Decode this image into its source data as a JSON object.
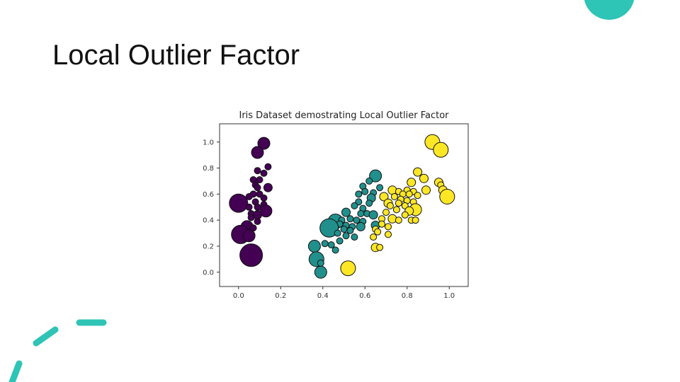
{
  "slide": {
    "title": "Local Outlier Factor"
  },
  "colors": {
    "accent": "#2ec4b6",
    "class0": "#440154",
    "class1": "#21908c",
    "class2": "#fde725"
  },
  "chart_data": {
    "type": "scatter",
    "title": "Iris Dataset demostrating Local Outlier Factor",
    "xlabel": "",
    "ylabel": "",
    "xlim": [
      -0.09,
      1.09
    ],
    "ylim": [
      -0.11,
      1.14
    ],
    "xticks": [
      0.0,
      0.2,
      0.4,
      0.6,
      0.8,
      1.0
    ],
    "yticks": [
      0.0,
      0.2,
      0.4,
      0.6,
      0.8,
      1.0
    ],
    "xtick_labels": [
      "0.0",
      "0.2",
      "0.4",
      "0.6",
      "0.8",
      "1.0"
    ],
    "ytick_labels": [
      "0.0",
      "0.2",
      "0.4",
      "0.6",
      "0.8",
      "1.0"
    ],
    "grid": false,
    "series": [
      {
        "color": "#440154",
        "points": [
          [
            0.12,
            0.99,
            3
          ],
          [
            0.09,
            0.92,
            3
          ],
          [
            0.14,
            0.81,
            1
          ],
          [
            0.09,
            0.78,
            1
          ],
          [
            0.12,
            0.76,
            1
          ],
          [
            0.1,
            0.71,
            1
          ],
          [
            0.07,
            0.71,
            1
          ],
          [
            0.08,
            0.67,
            1
          ],
          [
            0.14,
            0.65,
            2
          ],
          [
            0.09,
            0.65,
            1
          ],
          [
            0.07,
            0.6,
            1
          ],
          [
            0.1,
            0.6,
            1
          ],
          [
            0.05,
            0.58,
            1
          ],
          [
            0.12,
            0.57,
            1
          ],
          [
            0.0,
            0.53,
            5
          ],
          [
            0.08,
            0.54,
            1
          ],
          [
            0.12,
            0.52,
            1
          ],
          [
            0.05,
            0.5,
            1
          ],
          [
            0.09,
            0.5,
            1
          ],
          [
            0.13,
            0.47,
            3
          ],
          [
            0.06,
            0.45,
            1
          ],
          [
            0.09,
            0.44,
            2
          ],
          [
            0.06,
            0.42,
            1
          ],
          [
            0.09,
            0.39,
            1
          ],
          [
            0.04,
            0.35,
            3
          ],
          [
            0.07,
            0.34,
            1
          ],
          [
            0.01,
            0.29,
            5
          ],
          [
            0.05,
            0.28,
            3
          ],
          [
            0.06,
            0.13,
            6
          ]
        ]
      },
      {
        "color": "#21908c",
        "points": [
          [
            0.65,
            0.74,
            3
          ],
          [
            0.62,
            0.7,
            1
          ],
          [
            0.59,
            0.66,
            1
          ],
          [
            0.67,
            0.65,
            1
          ],
          [
            0.6,
            0.62,
            1
          ],
          [
            0.64,
            0.61,
            1
          ],
          [
            0.57,
            0.6,
            1
          ],
          [
            0.63,
            0.57,
            2
          ],
          [
            0.57,
            0.54,
            1
          ],
          [
            0.62,
            0.53,
            1
          ],
          [
            0.55,
            0.51,
            1
          ],
          [
            0.59,
            0.49,
            1
          ],
          [
            0.51,
            0.46,
            2
          ],
          [
            0.58,
            0.45,
            1
          ],
          [
            0.61,
            0.45,
            1
          ],
          [
            0.64,
            0.44,
            2
          ],
          [
            0.46,
            0.39,
            4
          ],
          [
            0.53,
            0.41,
            1
          ],
          [
            0.49,
            0.4,
            1
          ],
          [
            0.56,
            0.4,
            1
          ],
          [
            0.59,
            0.39,
            1
          ],
          [
            0.48,
            0.37,
            1
          ],
          [
            0.51,
            0.36,
            1
          ],
          [
            0.54,
            0.35,
            1
          ],
          [
            0.58,
            0.35,
            2
          ],
          [
            0.65,
            0.36,
            2
          ],
          [
            0.43,
            0.34,
            5
          ],
          [
            0.5,
            0.33,
            1
          ],
          [
            0.53,
            0.32,
            1
          ],
          [
            0.47,
            0.3,
            1
          ],
          [
            0.51,
            0.28,
            1
          ],
          [
            0.55,
            0.27,
            1
          ],
          [
            0.48,
            0.24,
            1
          ],
          [
            0.41,
            0.22,
            1
          ],
          [
            0.44,
            0.21,
            1
          ],
          [
            0.36,
            0.2,
            3
          ],
          [
            0.46,
            0.17,
            1
          ],
          [
            0.37,
            0.1,
            4
          ],
          [
            0.39,
            0.07,
            1
          ],
          [
            0.39,
            0.0,
            3
          ]
        ]
      },
      {
        "color": "#fde725",
        "points": [
          [
            0.92,
            1.0,
            4
          ],
          [
            0.96,
            0.94,
            4
          ],
          [
            0.85,
            0.77,
            2
          ],
          [
            0.88,
            0.72,
            2
          ],
          [
            0.95,
            0.69,
            2
          ],
          [
            0.96,
            0.67,
            1
          ],
          [
            0.82,
            0.69,
            2
          ],
          [
            0.73,
            0.63,
            2
          ],
          [
            0.76,
            0.62,
            1
          ],
          [
            0.8,
            0.63,
            1
          ],
          [
            0.83,
            0.62,
            1
          ],
          [
            0.89,
            0.63,
            2
          ],
          [
            0.97,
            0.63,
            2
          ],
          [
            0.78,
            0.6,
            1
          ],
          [
            0.81,
            0.6,
            1
          ],
          [
            0.85,
            0.59,
            1
          ],
          [
            0.69,
            0.58,
            2
          ],
          [
            0.74,
            0.58,
            1
          ],
          [
            0.77,
            0.56,
            1
          ],
          [
            0.8,
            0.55,
            1
          ],
          [
            0.83,
            0.54,
            1
          ],
          [
            0.99,
            0.58,
            4
          ],
          [
            0.71,
            0.53,
            2
          ],
          [
            0.76,
            0.53,
            1
          ],
          [
            0.79,
            0.51,
            1
          ],
          [
            0.72,
            0.51,
            1
          ],
          [
            0.84,
            0.48,
            3
          ],
          [
            0.75,
            0.48,
            1
          ],
          [
            0.7,
            0.46,
            1
          ],
          [
            0.81,
            0.47,
            2
          ],
          [
            0.79,
            0.44,
            1
          ],
          [
            0.68,
            0.41,
            1
          ],
          [
            0.73,
            0.41,
            2
          ],
          [
            0.76,
            0.4,
            1
          ],
          [
            0.82,
            0.4,
            1
          ],
          [
            0.84,
            0.4,
            1
          ],
          [
            0.68,
            0.37,
            1
          ],
          [
            0.71,
            0.35,
            1
          ],
          [
            0.65,
            0.33,
            1
          ],
          [
            0.66,
            0.31,
            1
          ],
          [
            0.71,
            0.29,
            1
          ],
          [
            0.64,
            0.27,
            1
          ],
          [
            0.65,
            0.19,
            2
          ],
          [
            0.67,
            0.19,
            1
          ],
          [
            0.52,
            0.03,
            4
          ]
        ]
      }
    ]
  }
}
